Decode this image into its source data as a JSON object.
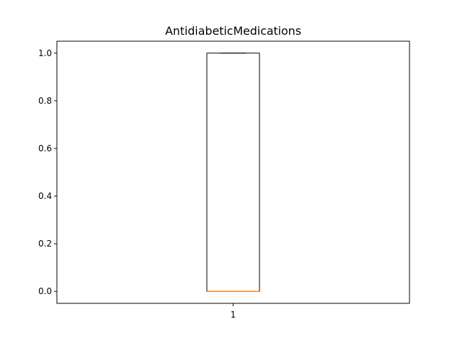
{
  "chart_data": {
    "type": "box",
    "title": "AntidiabeticMedications",
    "xlabel": "",
    "ylabel": "",
    "categories": [
      "1"
    ],
    "boxes": [
      {
        "category": "1",
        "min": 0.0,
        "q1": 0.0,
        "median": 0.0,
        "q3": 1.0,
        "max": 1.0
      }
    ],
    "ylim": [
      -0.05,
      1.05
    ],
    "yticks": [
      0.0,
      0.2,
      0.4,
      0.6,
      0.8,
      1.0
    ],
    "ytick_labels": [
      "0.0",
      "0.2",
      "0.4",
      "0.6",
      "0.8",
      "1.0"
    ],
    "grid": false,
    "colors": {
      "box": "#000000",
      "median": "#ff7f0e",
      "axes": "#000000"
    }
  }
}
